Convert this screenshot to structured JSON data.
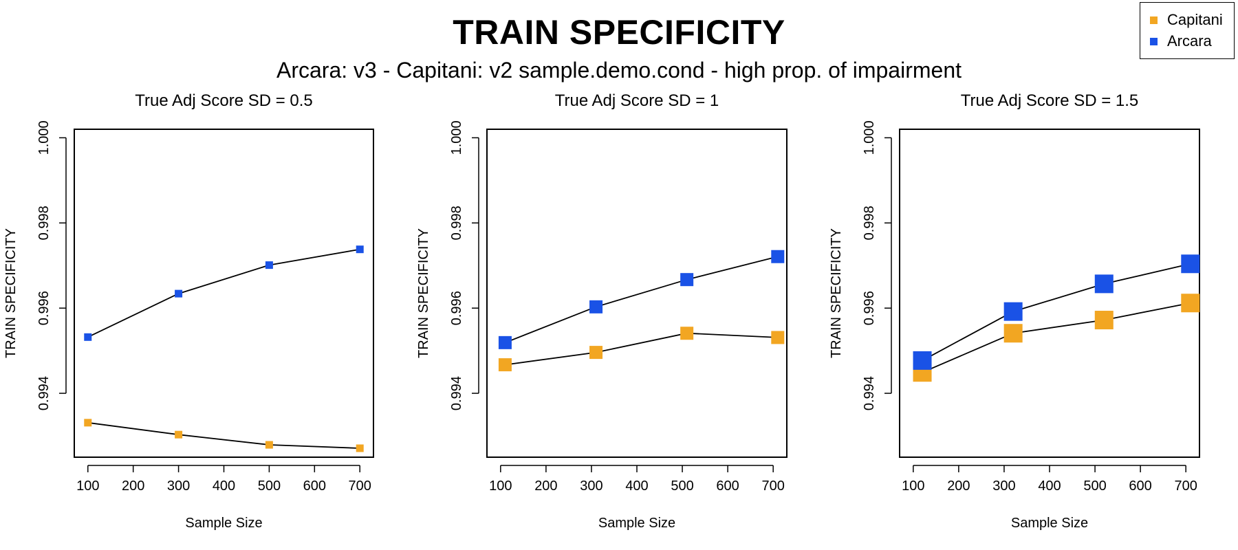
{
  "title": "TRAIN SPECIFICITY",
  "subtitle": "Arcara: v3 - Capitani: v2 sample.demo.cond - high prop. of impairment",
  "legend": {
    "position": "top-right",
    "items": [
      {
        "label": "Capitani",
        "color": "#f2a622"
      },
      {
        "label": "Arcara",
        "color": "#1a52e6"
      }
    ]
  },
  "chart_data": [
    {
      "type": "line",
      "title": "True Adj Score SD = 0.5",
      "xlabel": "Sample Size",
      "ylabel": "TRAIN SPECIFICITY",
      "xticks": [
        100,
        200,
        300,
        400,
        500,
        600,
        700
      ],
      "yticks": [
        0.994,
        0.996,
        0.998,
        1.0
      ],
      "ytick_labels": [
        "0.994",
        "0.996",
        "0.998",
        "1.000"
      ],
      "xlim": [
        70,
        730
      ],
      "ylim": [
        0.9925,
        1.0002
      ],
      "marker_scale": "small",
      "series": [
        {
          "name": "Capitani",
          "color": "#f2a622",
          "x": [
            100,
            300,
            500,
            700
          ],
          "y": [
            0.99331,
            0.99303,
            0.99279,
            0.99271
          ]
        },
        {
          "name": "Arcara",
          "color": "#1a52e6",
          "x": [
            100,
            300,
            500,
            700
          ],
          "y": [
            0.99532,
            0.99634,
            0.99701,
            0.99738
          ]
        }
      ]
    },
    {
      "type": "line",
      "title": "True Adj Score SD = 1",
      "xlabel": "Sample Size",
      "ylabel": "TRAIN SPECIFICITY",
      "xticks": [
        100,
        200,
        300,
        400,
        500,
        600,
        700
      ],
      "yticks": [
        0.994,
        0.996,
        0.998,
        1.0
      ],
      "ytick_labels": [
        "0.994",
        "0.996",
        "0.998",
        "1.000"
      ],
      "xlim": [
        70,
        730
      ],
      "ylim": [
        0.9925,
        1.0002
      ],
      "marker_scale": "medium",
      "series": [
        {
          "name": "Capitani",
          "color": "#f2a622",
          "x": [
            110,
            310,
            510,
            710
          ],
          "y": [
            0.99467,
            0.99496,
            0.99541,
            0.99531
          ]
        },
        {
          "name": "Arcara",
          "color": "#1a52e6",
          "x": [
            110,
            310,
            510,
            710
          ],
          "y": [
            0.99519,
            0.99603,
            0.99667,
            0.99721
          ]
        }
      ]
    },
    {
      "type": "line",
      "title": "True Adj Score SD = 1.5",
      "xlabel": "Sample Size",
      "ylabel": "TRAIN SPECIFICITY",
      "xticks": [
        100,
        200,
        300,
        400,
        500,
        600,
        700
      ],
      "yticks": [
        0.994,
        0.996,
        0.998,
        1.0
      ],
      "ytick_labels": [
        "0.994",
        "0.996",
        "0.998",
        "1.000"
      ],
      "xlim": [
        70,
        730
      ],
      "ylim": [
        0.9925,
        1.0002
      ],
      "marker_scale": "large",
      "series": [
        {
          "name": "Capitani",
          "color": "#f2a622",
          "x": [
            120,
            320,
            520,
            710
          ],
          "y": [
            0.99449,
            0.99541,
            0.99572,
            0.99612
          ]
        },
        {
          "name": "Arcara",
          "color": "#1a52e6",
          "x": [
            120,
            320,
            520,
            710
          ],
          "y": [
            0.99477,
            0.99592,
            0.99657,
            0.99704
          ]
        }
      ]
    }
  ]
}
